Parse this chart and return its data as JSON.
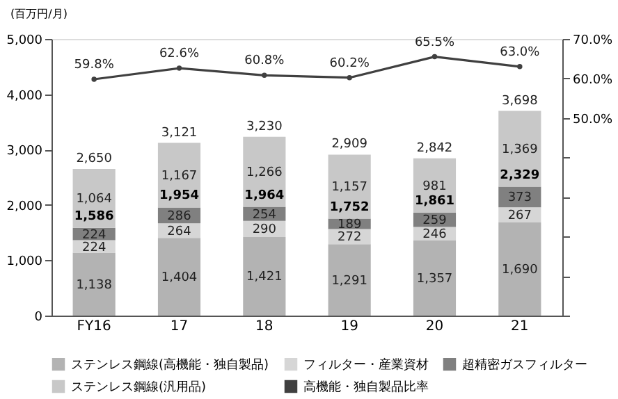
{
  "chart_data": {
    "type": "bar",
    "stacked": true,
    "ylabel": "(百万円/月)",
    "categories": [
      "FY16",
      "17",
      "18",
      "19",
      "20",
      "21"
    ],
    "series": [
      {
        "name": "ステンレス鋼線(高機能・独自製品)",
        "color": "#b3b3b3",
        "values": [
          1138,
          1404,
          1421,
          1291,
          1357,
          1690
        ],
        "value_labels": [
          "1,138",
          "1,404",
          "1,421",
          "1,291",
          "1,357",
          "1,690"
        ]
      },
      {
        "name": "フィルター・産業資材",
        "color": "#d6d6d6",
        "values": [
          224,
          264,
          290,
          272,
          246,
          267
        ],
        "value_labels": [
          "224",
          "264",
          "290",
          "272",
          "246",
          "267"
        ]
      },
      {
        "name": "超精密ガスフィルター",
        "color": "#808080",
        "values": [
          224,
          286,
          254,
          189,
          259,
          373
        ],
        "value_labels": [
          "224",
          "286",
          "254",
          "189",
          "259",
          "373"
        ]
      },
      {
        "name": "ステンレス鋼線(汎用品)",
        "color": "#c8c8c8",
        "values": [
          1064,
          1167,
          1266,
          1157,
          981,
          1369
        ],
        "value_labels": [
          "1,064",
          "1,167",
          "1,266",
          "1,157",
          "981",
          "1,369"
        ]
      },
      {
        "name": "高機能・独自製品比率",
        "type": "line",
        "axis": "y2",
        "color": "#404040",
        "marker": "circle",
        "values": [
          59.8,
          62.6,
          60.8,
          60.2,
          65.5,
          63.0
        ],
        "value_labels": [
          "59.8%",
          "62.6%",
          "60.8%",
          "60.2%",
          "65.5%",
          "63.0%"
        ]
      }
    ],
    "totals": [
      "2,650",
      "3,121",
      "3,230",
      "2,909",
      "2,842",
      "3,698"
    ],
    "annotations": [
      {
        "text": "1,586",
        "x": "FY16",
        "y": 1586
      },
      {
        "text": "1,954",
        "x": "17",
        "y": 1954
      },
      {
        "text": "1,964",
        "x": "18",
        "y": 1964
      },
      {
        "text": "1,752",
        "x": "19",
        "y": 1752
      },
      {
        "text": "1,861",
        "x": "20",
        "y": 1861
      },
      {
        "text": "2,329",
        "x": "21",
        "y": 2329
      }
    ],
    "ylim": [
      0,
      5000
    ],
    "yticks": [
      {
        "value": 0,
        "label": "0"
      },
      {
        "value": 1000,
        "label": "1,000"
      },
      {
        "value": 2000,
        "label": "2,000"
      },
      {
        "value": 3000,
        "label": "3,000"
      },
      {
        "value": 4000,
        "label": "4,000"
      },
      {
        "value": 5000,
        "label": "5,000"
      }
    ],
    "y2lim": [
      0,
      70
    ],
    "y2ticks": [
      {
        "value": 0,
        "label": null
      },
      {
        "value": 10,
        "label": null
      },
      {
        "value": 20,
        "label": null
      },
      {
        "value": 30,
        "label": null
      },
      {
        "value": 40,
        "label": null
      },
      {
        "value": 50,
        "label": "50.0%"
      },
      {
        "value": 60,
        "label": "60.0%"
      },
      {
        "value": 70,
        "label": "70.0%"
      }
    ],
    "grid": false,
    "legend": "bottom"
  }
}
